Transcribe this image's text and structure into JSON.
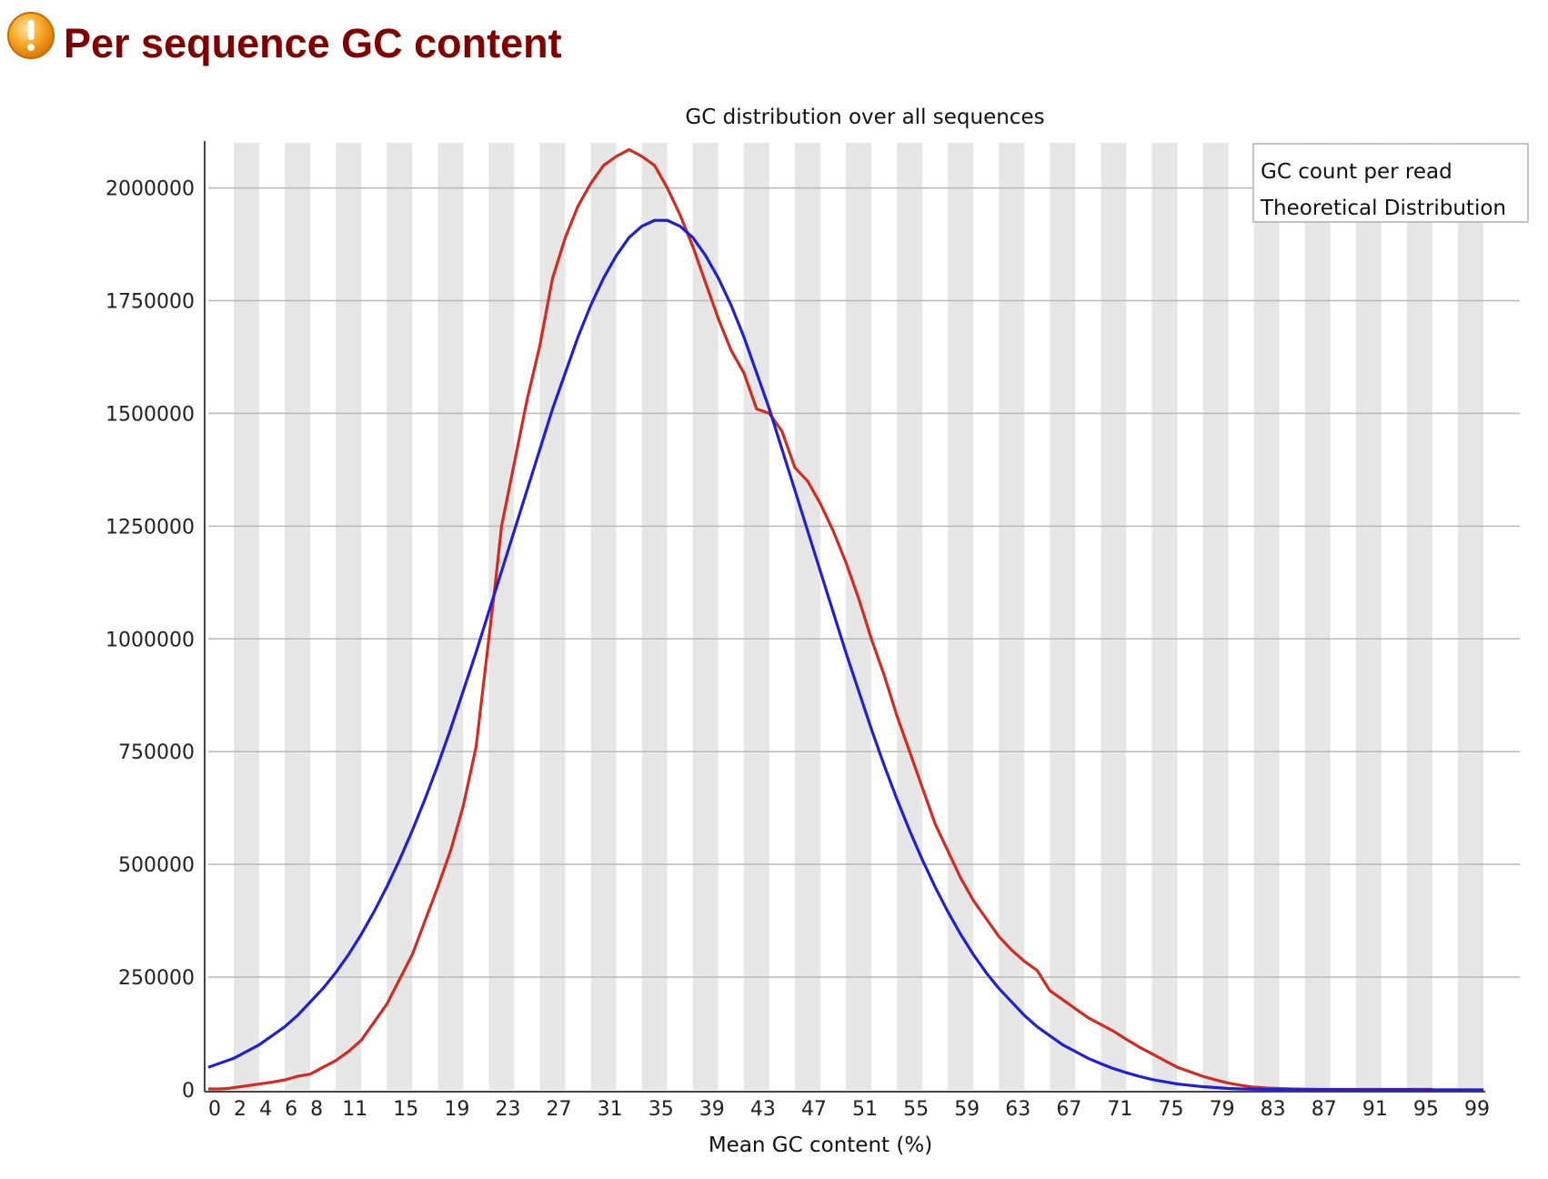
{
  "header": {
    "title": "Per sequence GC content",
    "status_icon": "warning-icon",
    "status_color": "#F39C12"
  },
  "chart_data": {
    "type": "line",
    "title": "GC distribution over all sequences",
    "xlabel": "Mean GC content (%)",
    "ylabel": "",
    "xlim": [
      0,
      100
    ],
    "ylim": [
      0,
      2100000
    ],
    "grid": true,
    "legend_position": "top-right",
    "x_tick_labels": [
      "0",
      "2",
      "4",
      "6",
      "8",
      "11",
      "15",
      "19",
      "23",
      "27",
      "31",
      "35",
      "39",
      "43",
      "47",
      "51",
      "55",
      "59",
      "63",
      "67",
      "71",
      "75",
      "79",
      "83",
      "87",
      "91",
      "95",
      "99"
    ],
    "y_ticks": [
      0,
      250000,
      500000,
      750000,
      1000000,
      1250000,
      1500000,
      1750000,
      2000000
    ],
    "y_tick_labels": [
      "0",
      "250000",
      "500000",
      "750000",
      "1000000",
      "1250000",
      "1500000",
      "1750000",
      "2000000"
    ],
    "x": [
      0,
      1,
      2,
      3,
      4,
      5,
      6,
      7,
      8,
      9,
      10,
      11,
      12,
      13,
      14,
      15,
      16,
      17,
      18,
      19,
      20,
      21,
      22,
      23,
      24,
      25,
      26,
      27,
      28,
      29,
      30,
      31,
      32,
      33,
      34,
      35,
      36,
      37,
      38,
      39,
      40,
      41,
      42,
      43,
      44,
      45,
      46,
      47,
      48,
      49,
      50,
      51,
      52,
      53,
      54,
      55,
      56,
      57,
      58,
      59,
      60,
      61,
      62,
      63,
      64,
      65,
      66,
      67,
      68,
      69,
      70,
      71,
      72,
      73,
      74,
      75,
      76,
      77,
      78,
      79,
      80,
      81,
      82,
      83,
      84,
      85,
      86,
      87,
      88,
      89,
      90,
      91,
      92,
      93,
      94,
      95,
      96,
      97,
      98,
      99,
      100
    ],
    "series": [
      {
        "name": "GC count per read",
        "color": "#D42A20",
        "values": [
          2000,
          2000,
          2000,
          3000,
          5000,
          7000,
          9000,
          13000,
          17000,
          22000,
          30000,
          35000,
          50000,
          65000,
          85000,
          110000,
          150000,
          190000,
          245000,
          300000,
          375000,
          450000,
          530000,
          630000,
          760000,
          1000000,
          1120000,
          1250000,
          1390000,
          1530000,
          1650000,
          1800000,
          1890000,
          1960000,
          2010000,
          2050000,
          2070000,
          2085000,
          2070000,
          2050000,
          2000000,
          1940000,
          1870000,
          1790000,
          1710000,
          1640000,
          1590000,
          1510000,
          1500000,
          1460000,
          1380000,
          1350000,
          1300000,
          1240000,
          1170000,
          1090000,
          1000000,
          920000,
          830000,
          750000,
          670000,
          590000,
          530000,
          470000,
          420000,
          380000,
          340000,
          310000,
          285000,
          265000,
          220000,
          200000,
          180000,
          160000,
          145000,
          130000,
          112000,
          95000,
          80000,
          65000,
          50000,
          40000,
          30000,
          22000,
          15000,
          10000,
          6000,
          4000,
          3000,
          2000,
          1500,
          1000,
          1000,
          1000,
          1000,
          1000,
          1000,
          1000,
          1000,
          1000,
          1000
        ],
        "source_x": [
          0,
          0.5,
          1,
          1.5,
          2,
          2.5,
          3,
          4,
          5,
          6,
          7,
          8,
          9,
          10,
          11,
          12,
          13,
          14,
          15,
          16,
          17,
          18,
          19,
          20,
          21,
          22,
          22.5,
          23,
          24,
          25,
          26,
          27,
          28,
          29,
          30,
          31,
          32,
          33,
          34,
          35,
          36,
          37,
          38,
          39,
          40,
          41,
          42,
          43,
          44,
          45,
          46,
          47,
          48,
          49,
          50,
          51,
          52,
          53,
          54,
          55,
          56,
          57,
          58,
          59,
          60,
          61,
          62,
          63,
          64,
          65,
          66,
          67,
          68,
          69,
          70,
          71,
          72,
          73,
          74,
          75,
          76,
          77,
          78,
          79,
          80,
          81,
          82,
          83,
          84,
          85,
          86,
          87,
          88,
          89,
          90,
          91,
          92,
          93,
          94,
          95,
          96,
          97,
          98,
          99,
          100
        ]
      },
      {
        "name": "Theoretical Distribution",
        "color": "#1F1FD8",
        "values": [
          50000,
          60000,
          70000,
          85000,
          100000,
          120000,
          140000,
          165000,
          195000,
          225000,
          260000,
          300000,
          345000,
          395000,
          450000,
          510000,
          575000,
          645000,
          720000,
          800000,
          885000,
          970000,
          1060000,
          1150000,
          1240000,
          1330000,
          1420000,
          1510000,
          1590000,
          1670000,
          1740000,
          1800000,
          1850000,
          1890000,
          1915000,
          1928000,
          1928000,
          1915000,
          1890000,
          1850000,
          1800000,
          1740000,
          1670000,
          1590000,
          1510000,
          1420000,
          1330000,
          1240000,
          1150000,
          1060000,
          970000,
          885000,
          800000,
          720000,
          645000,
          575000,
          510000,
          450000,
          395000,
          345000,
          300000,
          260000,
          225000,
          195000,
          165000,
          140000,
          120000,
          100000,
          85000,
          70000,
          58000,
          47000,
          38000,
          30000,
          23000,
          18000,
          13000,
          10000,
          7000,
          5000,
          3000,
          2000,
          1500,
          1000,
          800,
          600,
          400,
          300,
          200,
          100,
          100,
          100,
          100,
          100,
          100,
          100,
          100,
          100,
          100,
          100,
          100
        ]
      }
    ]
  }
}
